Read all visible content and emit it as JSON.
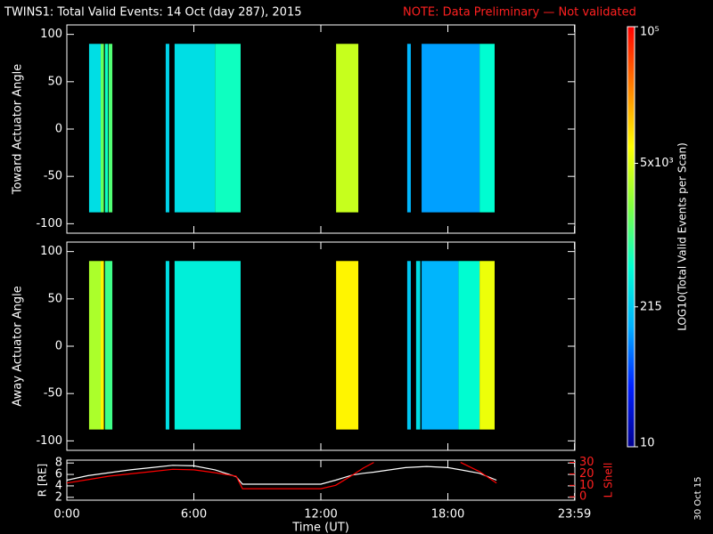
{
  "header": {
    "title": "TWINS1: Total Valid Events: 14 Oct (day 287), 2015",
    "note": "NOTE: Data Preliminary — Not validated",
    "date_stamp": "30 Oct 15"
  },
  "colorbar": {
    "label": "LOG10(Total Valid Events per Scan)",
    "log": true,
    "lim": [
      10,
      100000
    ],
    "ticks": [
      10,
      215,
      {
        "value": 5000,
        "label": "5x10³"
      },
      {
        "value": 100000,
        "label": "10⁵"
      }
    ],
    "colormap": [
      "#000090",
      "#0020ff",
      "#00b0ff",
      "#00ffd0",
      "#80ff40",
      "#ffff00",
      "#ff8000",
      "#ff0000"
    ]
  },
  "chart_data": [
    {
      "type": "spectrogram",
      "ylabel": "Toward Actuator Angle",
      "ylim": [
        -110,
        110
      ],
      "yticks": [
        -100,
        -50,
        0,
        50,
        100
      ],
      "xlim": [
        0,
        24
      ],
      "xticks": [
        {
          "value": 0,
          "label": "0:00"
        },
        {
          "value": 6,
          "label": "6:00"
        },
        {
          "value": 12,
          "label": "12:00"
        },
        {
          "value": 18,
          "label": "18:00"
        },
        {
          "value": 23.983,
          "label": "23:59"
        }
      ],
      "angle_range": [
        -88,
        90
      ],
      "blocks": [
        {
          "start": 1.05,
          "end": 1.6,
          "value": 300
        },
        {
          "start": 1.6,
          "end": 1.75,
          "value": 1500
        },
        {
          "start": 1.8,
          "end": 1.95,
          "value": 600
        },
        {
          "start": 1.98,
          "end": 2.15,
          "value": 1200
        },
        {
          "start": 4.67,
          "end": 4.84,
          "value": 250
        },
        {
          "start": 5.09,
          "end": 7.0,
          "value": 300
        },
        {
          "start": 7.0,
          "end": 8.21,
          "value": 600
        },
        {
          "start": 12.72,
          "end": 13.77,
          "value": 4000
        },
        {
          "start": 16.08,
          "end": 16.25,
          "value": 150
        },
        {
          "start": 16.76,
          "end": 19.5,
          "value": 120
        },
        {
          "start": 19.5,
          "end": 20.21,
          "value": 500
        }
      ]
    },
    {
      "type": "spectrogram",
      "ylabel": "Away Actuator Angle",
      "ylim": [
        -110,
        110
      ],
      "yticks": [
        -100,
        -50,
        0,
        50,
        100
      ],
      "xlim": [
        0,
        24
      ],
      "xticks": [
        {
          "value": 0,
          "label": "0:00"
        },
        {
          "value": 6,
          "label": "6:00"
        },
        {
          "value": 12,
          "label": "12:00"
        },
        {
          "value": 18,
          "label": "18:00"
        },
        {
          "value": 23.983,
          "label": "23:59"
        }
      ],
      "angle_range": [
        -88,
        90
      ],
      "blocks": [
        {
          "start": 1.05,
          "end": 1.6,
          "value": 3000
        },
        {
          "start": 1.6,
          "end": 1.75,
          "value": 8000
        },
        {
          "start": 1.8,
          "end": 2.15,
          "value": 1000
        },
        {
          "start": 4.67,
          "end": 4.84,
          "value": 300
        },
        {
          "start": 5.09,
          "end": 8.21,
          "value": 400
        },
        {
          "start": 12.72,
          "end": 13.77,
          "value": 8000
        },
        {
          "start": 16.08,
          "end": 16.25,
          "value": 200
        },
        {
          "start": 16.5,
          "end": 16.7,
          "value": 300
        },
        {
          "start": 16.76,
          "end": 18.5,
          "value": 150
        },
        {
          "start": 18.5,
          "end": 19.5,
          "value": 500
        },
        {
          "start": 19.5,
          "end": 20.21,
          "value": 6000
        }
      ]
    },
    {
      "type": "line",
      "ylabel": "R [RE]",
      "y2label": "L Shell",
      "xlabel": "Time (UT)",
      "xlim": [
        0,
        24
      ],
      "xticks": [
        {
          "value": 0,
          "label": "0:00"
        },
        {
          "value": 6,
          "label": "6:00"
        },
        {
          "value": 12,
          "label": "12:00"
        },
        {
          "value": 18,
          "label": "18:00"
        },
        {
          "value": 23.983,
          "label": "23:59"
        }
      ],
      "ylim": [
        1.5,
        8.5
      ],
      "yticks": [
        2,
        4,
        6,
        8
      ],
      "y2lim": [
        -3,
        32
      ],
      "y2ticks": [
        0,
        10,
        20,
        30
      ],
      "x": [
        0,
        1,
        2,
        3,
        4,
        5,
        6,
        7,
        8,
        8.3,
        10,
        12,
        12.7,
        13.5,
        14,
        14.5,
        16,
        17,
        18,
        18.6,
        19.5,
        20.3
      ],
      "series": [
        {
          "color": "#ffffff",
          "values": [
            5,
            5.8,
            6.3,
            6.8,
            7.2,
            7.6,
            7.5,
            6.8,
            5.6,
            4.3,
            4.3,
            4.3,
            5,
            5.9,
            6.2,
            6.4,
            7.2,
            7.4,
            7.2,
            6.8,
            6.2,
            5
          ]
        },
        {
          "color": "#ff0000",
          "axis": "y2",
          "values": [
            12,
            15,
            18,
            20,
            22,
            24,
            23.5,
            21,
            18,
            7,
            7,
            7,
            10,
            19,
            25,
            30,
            null,
            null,
            null,
            30,
            22,
            12
          ]
        }
      ]
    }
  ]
}
